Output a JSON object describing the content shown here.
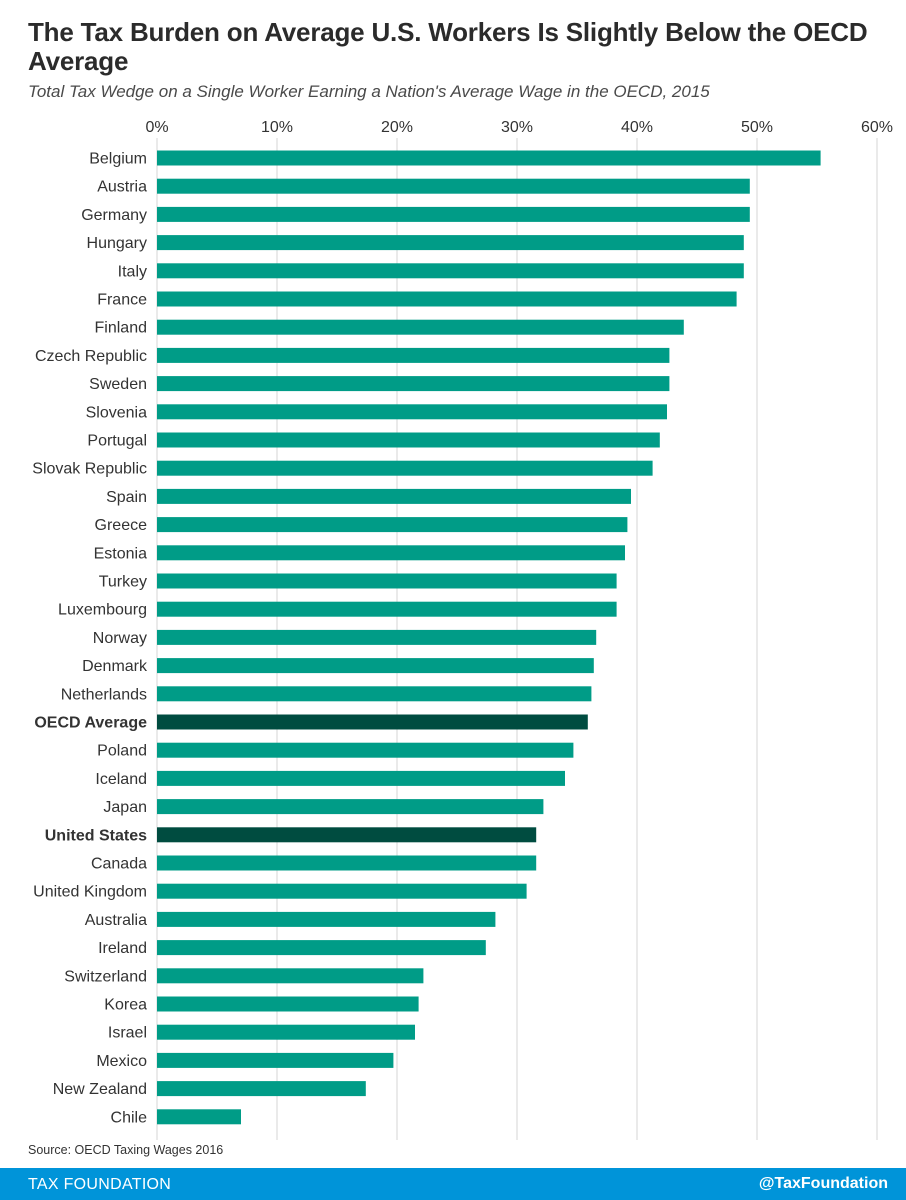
{
  "title": "The Tax Burden on Average U.S. Workers Is Slightly Below the OECD Average",
  "subtitle": "Total Tax Wedge on a Single Worker Earning a Nation's Average Wage in the OECD, 2015",
  "source": "Source: OECD Taxing Wages 2016",
  "footer": {
    "brand": "TAX FOUNDATION",
    "handle": "@TaxFoundation"
  },
  "colors": {
    "bar": "#009c87",
    "highlight": "#004c40",
    "grid": "#d4d4d4",
    "footer": "#0094d9"
  },
  "chart_data": {
    "type": "bar",
    "orientation": "horizontal",
    "title": "The Tax Burden on Average U.S. Workers Is Slightly Below the OECD Average",
    "subtitle": "Total Tax Wedge on a Single Worker Earning a Nation's Average Wage in the OECD, 2015",
    "xlabel": "",
    "ylabel": "",
    "xlim": [
      0,
      60
    ],
    "ticks": [
      0,
      10,
      20,
      30,
      40,
      50,
      60
    ],
    "tick_labels": [
      "0%",
      "10%",
      "20%",
      "30%",
      "40%",
      "50%",
      "60%"
    ],
    "axis_position": "top",
    "grid": true,
    "highlighted": [
      "OECD Average",
      "United States"
    ],
    "categories": [
      "Belgium",
      "Austria",
      "Germany",
      "Hungary",
      "Italy",
      "France",
      "Finland",
      "Czech Republic",
      "Sweden",
      "Slovenia",
      "Portugal",
      "Slovak Republic",
      "Spain",
      "Greece",
      "Estonia",
      "Turkey",
      "Luxembourg",
      "Norway",
      "Denmark",
      "Netherlands",
      "OECD Average",
      "Poland",
      "Iceland",
      "Japan",
      "United States",
      "Canada",
      "United Kingdom",
      "Australia",
      "Ireland",
      "Switzerland",
      "Korea",
      "Israel",
      "Mexico",
      "New Zealand",
      "Chile"
    ],
    "values": [
      55.3,
      49.4,
      49.4,
      48.9,
      48.9,
      48.3,
      43.9,
      42.7,
      42.7,
      42.5,
      41.9,
      41.3,
      39.5,
      39.2,
      39.0,
      38.3,
      38.3,
      36.6,
      36.4,
      36.2,
      35.9,
      34.7,
      34.0,
      32.2,
      31.6,
      31.6,
      30.8,
      28.2,
      27.4,
      22.2,
      21.8,
      21.5,
      19.7,
      17.4,
      7.0
    ]
  }
}
